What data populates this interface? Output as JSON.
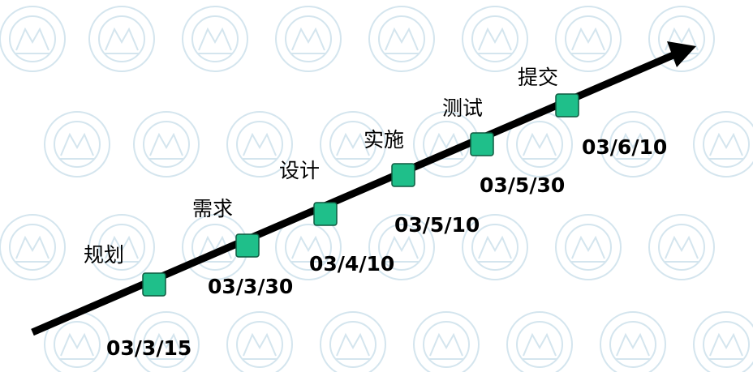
{
  "timeline": {
    "arrow_color": "#000000",
    "marker_fill": "#1fbf8a",
    "marker_stroke": "#0f5a40",
    "watermark_color": "#d4e5ee",
    "steps": [
      {
        "label": "规划",
        "date": "03/3/15"
      },
      {
        "label": "需求",
        "date": "03/3/30"
      },
      {
        "label": "设计",
        "date": "03/4/10"
      },
      {
        "label": "实施",
        "date": "03/5/10"
      },
      {
        "label": "测试",
        "date": "03/5/30"
      },
      {
        "label": "提交",
        "date": "03/6/10"
      }
    ]
  }
}
